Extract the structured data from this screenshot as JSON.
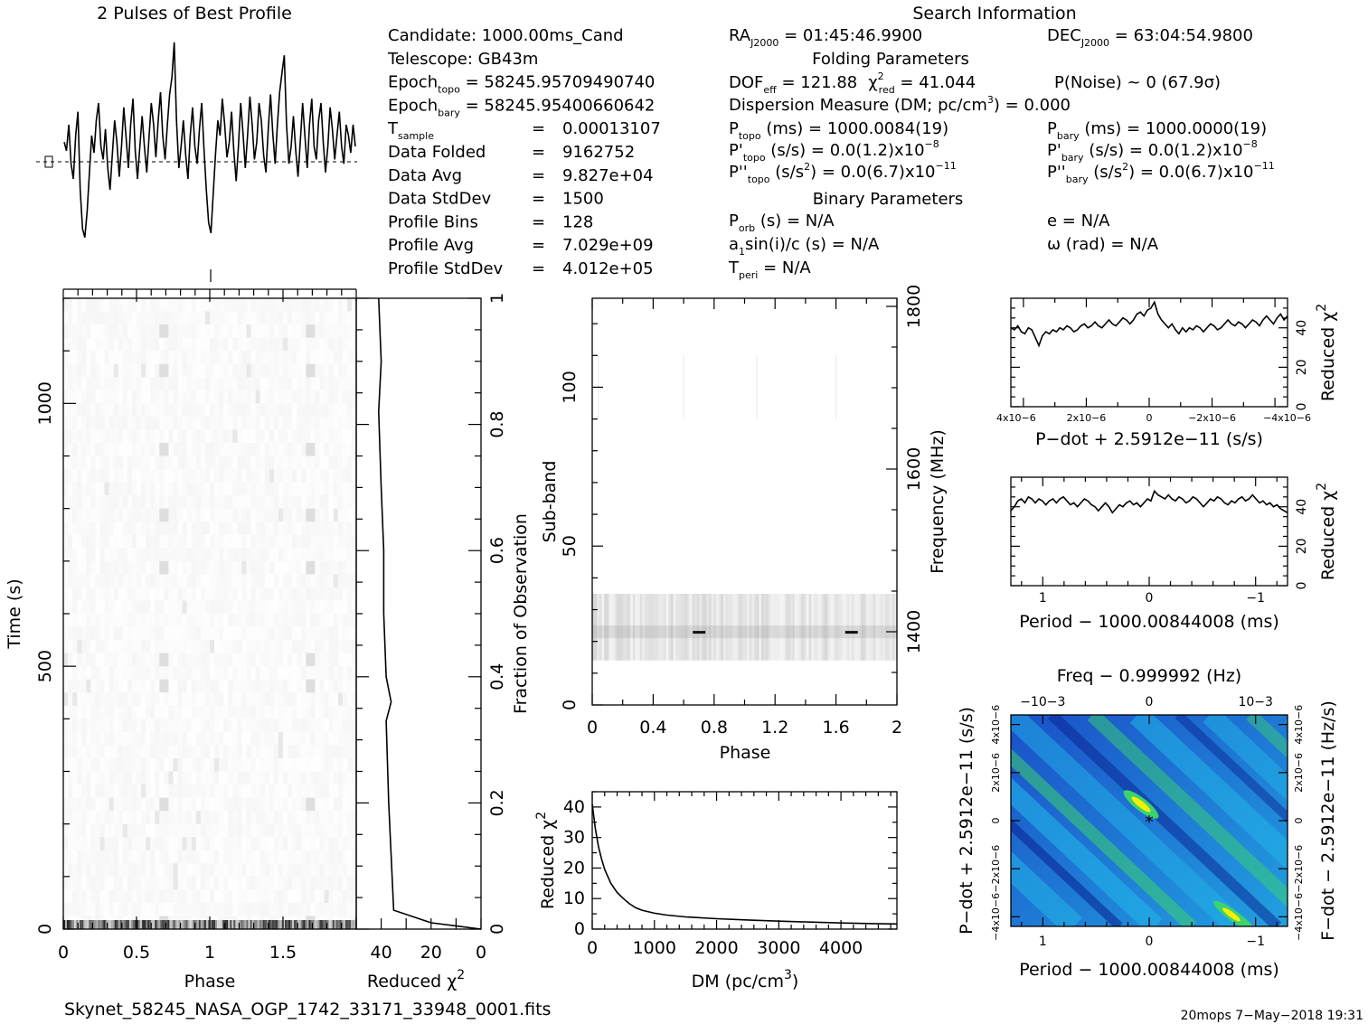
{
  "header": {
    "profile_title": "2 Pulses of Best Profile",
    "search_title": "Search Information",
    "folding_title": "Folding Parameters",
    "binary_title": "Binary Parameters"
  },
  "info_col1": [
    {
      "label": "Candidate:  1000.00ms_Cand"
    },
    {
      "label": "Telescope:  GB43m"
    },
    {
      "label": "Epoch",
      "sub": "topo",
      "value": " = 58245.95709490740"
    },
    {
      "label": "Epoch",
      "sub": "bary",
      "value": " = 58245.95400660642"
    },
    {
      "label": "T",
      "sub": "sample",
      "eq": "=",
      "value": "0.00013107"
    },
    {
      "label": "Data Folded",
      "eq": "=",
      "value": "9162752"
    },
    {
      "label": "Data Avg",
      "eq": "=",
      "value": "9.827e+04"
    },
    {
      "label": "Data StdDev",
      "eq": "=",
      "value": "1500"
    },
    {
      "label": "Profile Bins",
      "eq": "=",
      "value": "128"
    },
    {
      "label": "Profile Avg",
      "eq": "=",
      "value": "7.029e+09"
    },
    {
      "label": "Profile StdDev",
      "eq": "=",
      "value": "4.012e+05"
    }
  ],
  "info_col2": {
    "ra": {
      "label": "RA",
      "sub": "J2000",
      "value": " = 01:45:46.9900"
    },
    "dec": {
      "label": "DEC",
      "sub": "J2000",
      "value": " = 63:04:54.9800"
    },
    "dof": "DOF",
    "dof_sub": "eff",
    "dof_value": " = 121.88",
    "chi": "χ",
    "chi_sup": "2",
    "chi_sub": "red",
    "chi_value": " = 41.044",
    "pnoise": "P(Noise) ~ 0    (67.9σ)",
    "dm_line": "Dispersion Measure (DM; pc/cm",
    "dm_sup": "3",
    "dm_value": ") = 0.000",
    "ptopo": {
      "label": "P",
      "sub": "topo",
      "value": " (ms) =  1000.0084(19)"
    },
    "pdtopo": {
      "label": "P'",
      "sub": "topo",
      "value": " (s/s) = 0.0(1.2)x10",
      "exp": "−8"
    },
    "pddtopo": {
      "label": "P''",
      "sub": "topo",
      "value": " (s/s",
      "sup": "2",
      "value2": ") = 0.0(6.7)x10",
      "exp": "−11"
    },
    "pbary": {
      "label": "P",
      "sub": "bary",
      "value": " (ms) =  1000.0000(19)"
    },
    "pdbary": {
      "label": "P'",
      "sub": "bary",
      "value": " (s/s) = 0.0(1.2)x10",
      "exp": "−8"
    },
    "pddbary": {
      "label": "P''",
      "sub": "bary",
      "value": " (s/s",
      "sup": "2",
      "value2": ") = 0.0(6.7)x10",
      "exp": "−11"
    },
    "porb": {
      "label": "P",
      "sub": "orb",
      "value": " (s) = N/A"
    },
    "asini": {
      "label": "a",
      "sub": "1",
      "value": "sin(i)/c (s) = N/A"
    },
    "tperi": {
      "label": "T",
      "sub": "peri",
      "value": " = N/A"
    },
    "ecc": "e = N/A",
    "omega": "ω (rad) = N/A"
  },
  "footer": {
    "filename": "Skynet_58245_NASA_OGP_1742_33171_33948_0001.fits",
    "user_date": "20mops  7−May−2018 19:31"
  },
  "colors": {
    "ppdot_low": "#0a1f8f",
    "ppdot_mid": "#22b4e8",
    "ppdot_high": "#3cd26e",
    "ppdot_peak": "#f4f000"
  },
  "chart_data": [
    {
      "id": "profile",
      "type": "line",
      "title": "2 Pulses of Best Profile",
      "x_range": [
        0,
        2
      ],
      "values": [
        0.52,
        0.48,
        0.6,
        0.42,
        0.35,
        0.55,
        0.66,
        0.3,
        0.12,
        0.08,
        0.2,
        0.38,
        0.55,
        0.47,
        0.62,
        0.7,
        0.5,
        0.44,
        0.58,
        0.4,
        0.3,
        0.46,
        0.62,
        0.52,
        0.36,
        0.5,
        0.68,
        0.54,
        0.4,
        0.6,
        0.72,
        0.48,
        0.35,
        0.5,
        0.64,
        0.5,
        0.38,
        0.54,
        0.7,
        0.6,
        0.45,
        0.62,
        0.75,
        0.55,
        0.44,
        0.6,
        0.74,
        0.82,
        0.98,
        0.62,
        0.4,
        0.5,
        0.62,
        0.46,
        0.35,
        0.55,
        0.68,
        0.5,
        0.42,
        0.58,
        0.7,
        0.48,
        0.3,
        0.15,
        0.1,
        0.28,
        0.46,
        0.62,
        0.55,
        0.72,
        0.6,
        0.45,
        0.52,
        0.66,
        0.48,
        0.34,
        0.5,
        0.7,
        0.56,
        0.4,
        0.55,
        0.73,
        0.6,
        0.44,
        0.52,
        0.7,
        0.62,
        0.46,
        0.38,
        0.58,
        0.74,
        0.56,
        0.42,
        0.6,
        0.75,
        0.84,
        0.92,
        0.6,
        0.42,
        0.5,
        0.64,
        0.48,
        0.36,
        0.52,
        0.7,
        0.55,
        0.4,
        0.6,
        0.72,
        0.5,
        0.44,
        0.62,
        0.7,
        0.52,
        0.38,
        0.5,
        0.68,
        0.58,
        0.44,
        0.55,
        0.66,
        0.5,
        0.42,
        0.6,
        0.55,
        0.47,
        0.6,
        0.5
      ]
    },
    {
      "id": "time-phase",
      "type": "heatmap",
      "xlabel": "Phase",
      "ylabel": "Time (s)",
      "x_range": [
        0,
        2
      ],
      "y_range": [
        0,
        1200
      ],
      "x_ticks": [
        "0",
        "0.5",
        "1",
        "1.5"
      ],
      "y_ticks": [
        "0",
        "500",
        "1000"
      ]
    },
    {
      "id": "time-chi2",
      "type": "line",
      "xlabel": "Reduced χ",
      "xlabel_sup": "2",
      "ylabel": "Fraction of Observation",
      "x_range": [
        50,
        0
      ],
      "y_range": [
        0,
        1
      ],
      "x_ticks": [
        "40",
        "20",
        "0"
      ],
      "y_ticks": [
        "0",
        "0.2",
        "0.4",
        "0.6",
        "0.8",
        "1"
      ],
      "points": [
        [
          0,
          0
        ],
        [
          20,
          0.01
        ],
        [
          35,
          0.03
        ],
        [
          37,
          0.2
        ],
        [
          38,
          0.33
        ],
        [
          36,
          0.36
        ],
        [
          38,
          0.4
        ],
        [
          39,
          0.5
        ],
        [
          39,
          0.6
        ],
        [
          40,
          0.7
        ],
        [
          41,
          0.82
        ],
        [
          40,
          0.9
        ],
        [
          41,
          1.0
        ]
      ]
    },
    {
      "id": "subband-phase",
      "type": "heatmap",
      "xlabel": "Phase",
      "ylabel": "Sub-band",
      "y2label": "Frequency (MHz)",
      "x_range": [
        0,
        2
      ],
      "y_range": [
        0,
        128
      ],
      "x_ticks": [
        "0",
        "0.4",
        "0.8",
        "1.2",
        "1.6",
        "2"
      ],
      "y_ticks": [
        "0",
        "50",
        "100"
      ],
      "y2_ticks": [
        "1400",
        "1600",
        "1800"
      ]
    },
    {
      "id": "dm-chi2",
      "type": "line",
      "xlabel": "DM (pc/cm",
      "xlabel_sup": "3",
      "xlabel_end": ")",
      "ylabel": "Reduced χ",
      "ylabel_sup": "2",
      "x_range": [
        0,
        4900
      ],
      "y_range": [
        0,
        45
      ],
      "x_ticks": [
        "0",
        "1000",
        "2000",
        "3000",
        "4000"
      ],
      "y_ticks": [
        "0",
        "10",
        "20",
        "30",
        "40"
      ],
      "points": [
        [
          0,
          41
        ],
        [
          50,
          33
        ],
        [
          100,
          27
        ],
        [
          150,
          23
        ],
        [
          200,
          19.5
        ],
        [
          300,
          15
        ],
        [
          400,
          12
        ],
        [
          500,
          10
        ],
        [
          600,
          8.3
        ],
        [
          700,
          7
        ],
        [
          800,
          6.2
        ],
        [
          1000,
          5.2
        ],
        [
          1200,
          4.6
        ],
        [
          1500,
          4.0
        ],
        [
          2000,
          3.4
        ],
        [
          2500,
          3.0
        ],
        [
          3000,
          2.6
        ],
        [
          3500,
          2.3
        ],
        [
          4000,
          2.0
        ],
        [
          4500,
          1.8
        ],
        [
          4900,
          1.7
        ]
      ]
    },
    {
      "id": "pdot-chi2",
      "type": "line",
      "xlabel": "P−dot + 2.5912e−11 (s/s)",
      "ylabel": "Reduced χ",
      "ylabel_sup": "2",
      "x_range": [
        4.4e-06,
        -4.4e-06
      ],
      "y_range": [
        0,
        55
      ],
      "x_ticks": [
        "4x10−6",
        "2x10−6",
        "0",
        "−2x10−6",
        "−4x10−6"
      ],
      "y_ticks": [
        "0",
        "20",
        "40"
      ],
      "values": [
        40,
        39,
        41,
        38,
        37,
        40,
        39,
        35,
        31,
        36,
        38,
        37,
        39,
        38,
        40,
        39,
        41,
        40,
        38,
        39,
        41,
        42,
        40,
        41,
        43,
        41,
        40,
        42,
        44,
        42,
        41,
        43,
        45,
        44,
        42,
        44,
        47,
        48,
        46,
        49,
        50,
        53,
        47,
        44,
        42,
        40,
        42,
        39,
        37,
        40,
        38,
        40,
        39,
        41,
        40,
        38,
        40,
        42,
        41,
        39,
        40,
        42,
        44,
        42,
        41,
        43,
        42,
        40,
        42,
        44,
        43,
        41,
        44,
        46,
        44,
        42,
        45,
        47,
        44,
        46
      ]
    },
    {
      "id": "period-chi2",
      "type": "line",
      "xlabel": "Period − 1000.00844008 (ms)",
      "ylabel": "Reduced χ",
      "ylabel_sup": "2",
      "x_range": [
        1.3,
        -1.3
      ],
      "y_range": [
        0,
        55
      ],
      "x_ticks": [
        "1",
        "0",
        "−1"
      ],
      "y_ticks": [
        "0",
        "20",
        "40"
      ],
      "values": [
        38,
        40,
        43,
        44,
        42,
        45,
        44,
        42,
        44,
        43,
        41,
        43,
        44,
        42,
        44,
        45,
        43,
        41,
        42,
        40,
        42,
        44,
        43,
        41,
        40,
        38,
        40,
        42,
        40,
        37,
        39,
        41,
        40,
        42,
        43,
        41,
        42,
        40,
        42,
        44,
        43,
        48,
        46,
        45,
        44,
        46,
        44,
        43,
        45,
        44,
        42,
        43,
        45,
        44,
        42,
        40,
        42,
        44,
        43,
        45,
        44,
        42,
        41,
        43,
        42,
        44,
        45,
        43,
        44,
        46,
        44,
        42,
        43,
        41,
        42,
        40,
        41,
        39,
        38,
        37
      ]
    },
    {
      "id": "ppdot",
      "type": "heatmap",
      "title": "Freq − 0.999992 (Hz)",
      "xlabel": "Period − 1000.00844008 (ms)",
      "ylabel": "P−dot + 2.5912e−11 (s/s)",
      "y2label": "F−dot − 2.5912e−11 (Hz/s)",
      "x_range": [
        1.3,
        -1.3
      ],
      "y_range": [
        -4.4e-06,
        4.4e-06
      ],
      "x_ticks": [
        "1",
        "0",
        "−1"
      ],
      "top_ticks": [
        "−10−3",
        "0",
        "10−3"
      ],
      "y_ticks": [
        "4x10−6",
        "2x10−6",
        "0",
        "−2x10−6",
        "−4x10−6"
      ],
      "y2_ticks": [
        "−4x10−6",
        "−2x10−6",
        "0",
        "2x10−6",
        "4x10−6"
      ]
    }
  ]
}
